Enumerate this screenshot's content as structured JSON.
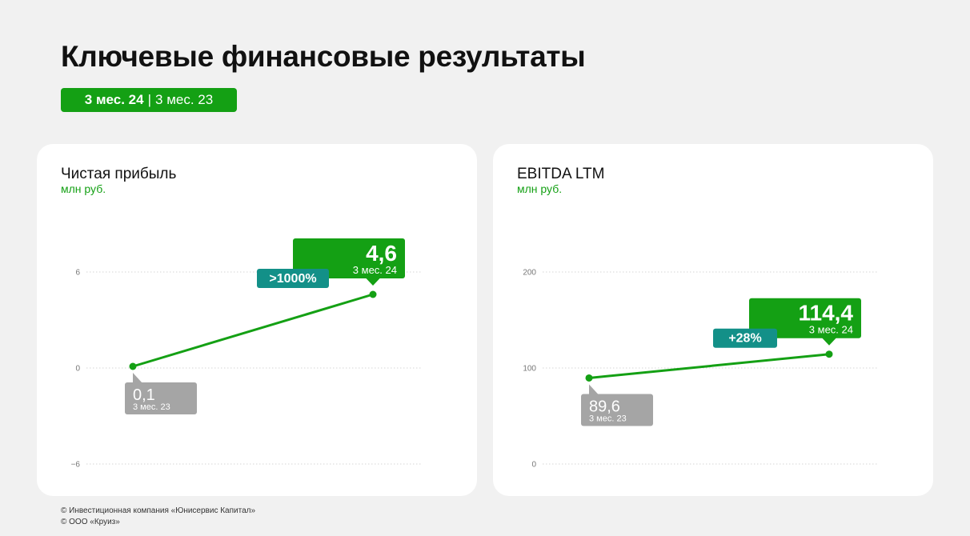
{
  "header": {
    "title": "Ключевые финансовые результаты",
    "period_current": "3 мес. 24",
    "period_separator": "|",
    "period_previous": "3 мес. 23"
  },
  "colors": {
    "accent": "#14a014",
    "teal": "#139088",
    "prev_label_bg": "#a5a5a5",
    "grid": "#d6d6d6",
    "page_bg": "#f1f1f1"
  },
  "chart_data": [
    {
      "type": "line",
      "title": "Чистая прибыль",
      "unit": "млн руб.",
      "categories": [
        "3 мес. 23",
        "3 мес. 24"
      ],
      "series": [
        {
          "values": [
            0.1,
            4.6
          ]
        }
      ],
      "value_labels": [
        "0,1",
        "4,6"
      ],
      "change_label": ">1000%",
      "yticks": [
        -6,
        0,
        6
      ],
      "ytick_labels": [
        "−6",
        "0",
        "6"
      ],
      "ylim": [
        -6,
        6
      ],
      "grid": true,
      "gridline_style": "dotted"
    },
    {
      "type": "line",
      "title": "EBITDA LTM",
      "unit": "млн руб.",
      "categories": [
        "3 мес. 23",
        "3 мес. 24"
      ],
      "series": [
        {
          "values": [
            89.6,
            114.4
          ]
        }
      ],
      "value_labels": [
        "89,6",
        "114,4"
      ],
      "change_label": "+28%",
      "yticks": [
        0,
        100,
        200
      ],
      "ytick_labels": [
        "0",
        "100",
        "200"
      ],
      "ylim": [
        0,
        200
      ],
      "grid": true,
      "gridline_style": "dotted"
    }
  ],
  "footer": {
    "line1": "© Инвестиционная компания «Юнисервис Капитал»",
    "line2": "© ООО «Круиз»"
  }
}
